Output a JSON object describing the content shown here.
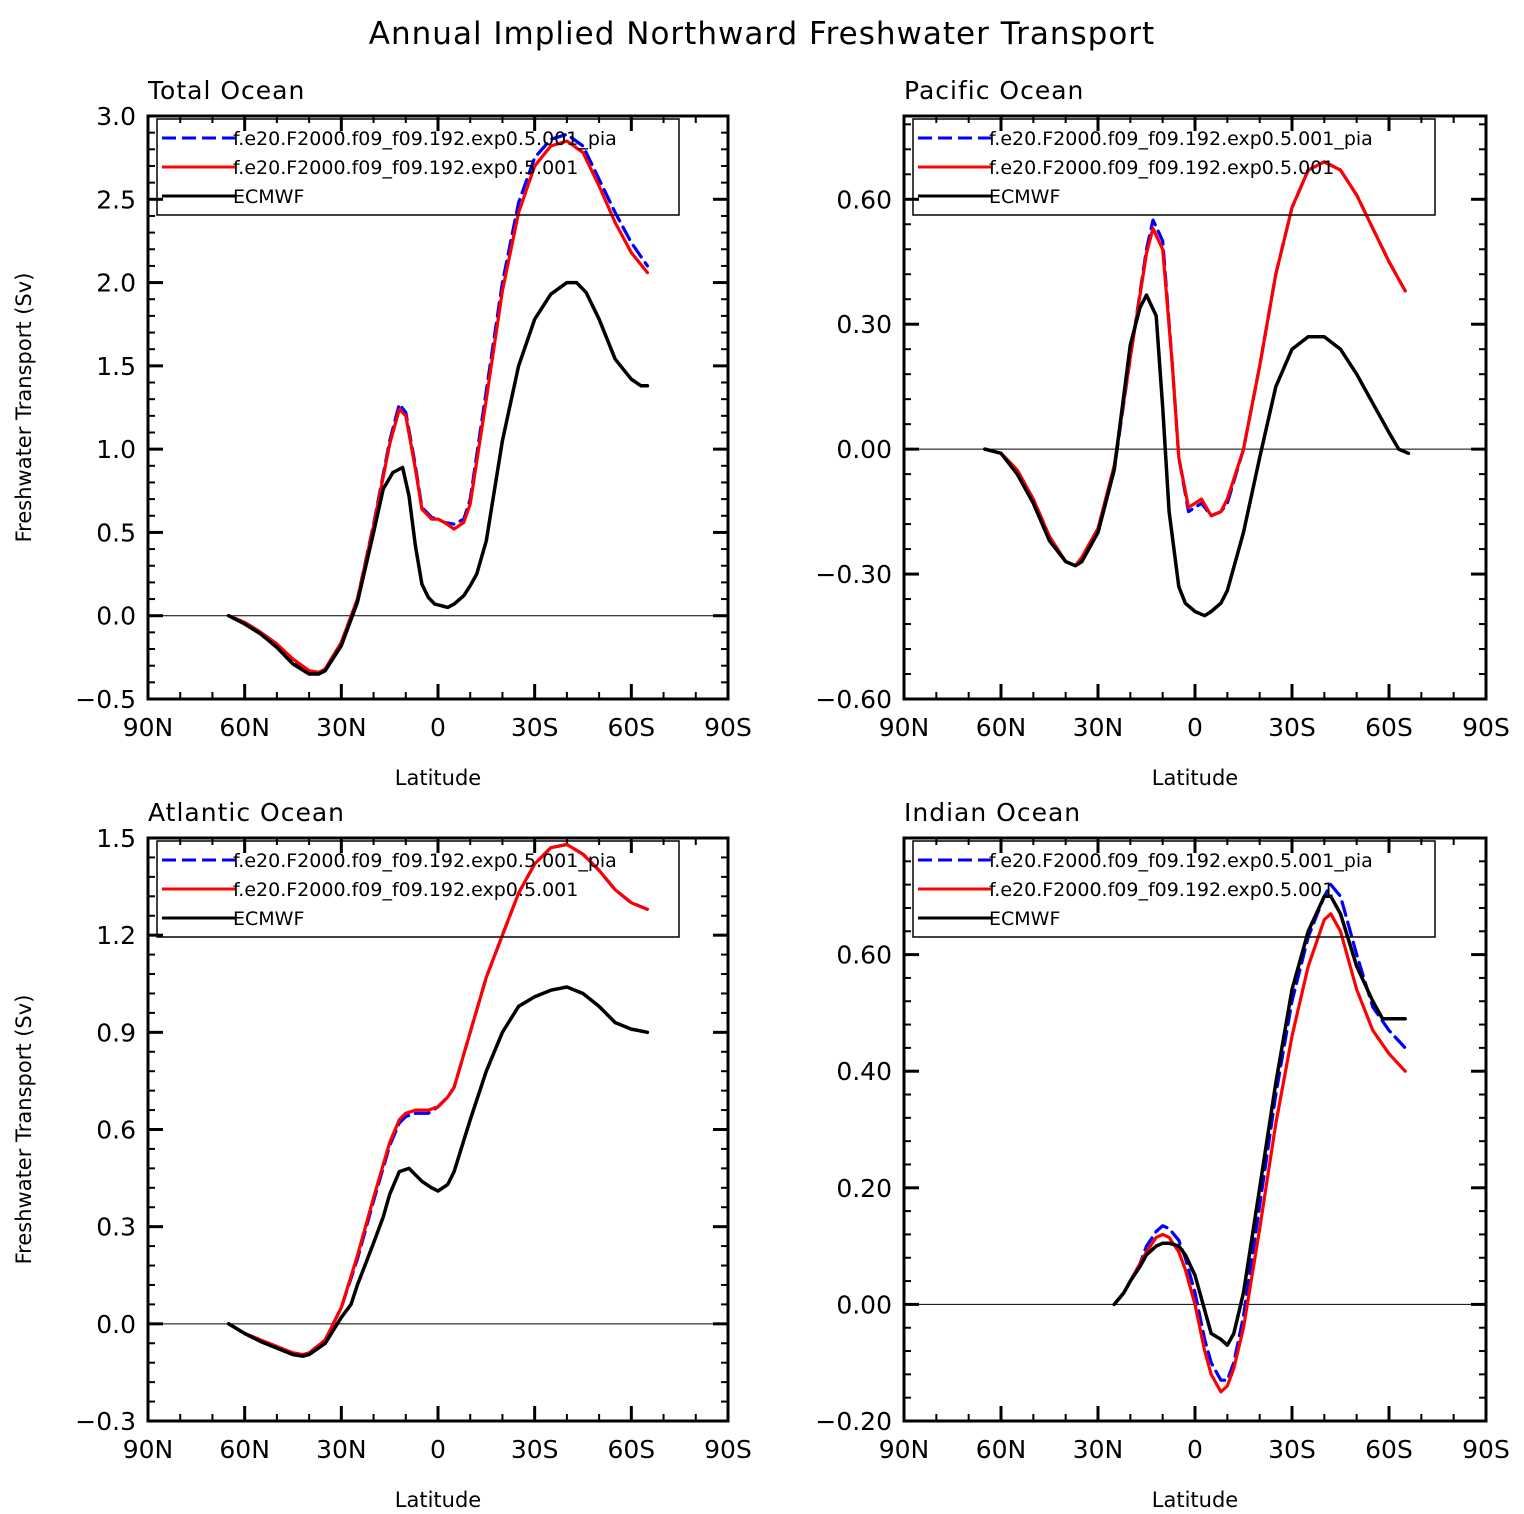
{
  "title": "Annual Implied Northward Freshwater Transport",
  "colors": {
    "pia": "#0000ff",
    "exp": "#ff0000",
    "ecmwf": "#000000"
  },
  "chart_data": [
    {
      "type": "line",
      "title": "Total Ocean",
      "xlabel": "Latitude",
      "ylabel": "Freshwater Transport (Sv)",
      "xlim": [
        -90,
        90
      ],
      "xticks": [
        "90N",
        "60N",
        "30N",
        "0",
        "30S",
        "60S",
        "90S"
      ],
      "ylim": [
        -0.5,
        3.0
      ],
      "yticks": [
        "-0.5",
        "0.0",
        "0.5",
        "1.0",
        "1.5",
        "2.0",
        "2.5",
        "3.0"
      ],
      "legend": [
        "f.e20.F2000.f09_f09.192.exp0.5.001_pia",
        "f.e20.F2000.f09_f09.192.exp0.5.001",
        "ECMWF"
      ],
      "series": [
        {
          "name": "f.e20.F2000.f09_f09.192.exp0.5.001_pia",
          "style": "dashed",
          "x": [
            -65,
            -60,
            -55,
            -50,
            -45,
            -40,
            -37,
            -35,
            -30,
            -25,
            -20,
            -15,
            -12,
            -10,
            -7,
            -5,
            -2,
            0,
            2,
            5,
            8,
            10,
            15,
            20,
            25,
            30,
            35,
            40,
            45,
            50,
            55,
            60,
            65
          ],
          "y": [
            0.0,
            -0.04,
            -0.1,
            -0.17,
            -0.27,
            -0.35,
            -0.35,
            -0.32,
            -0.16,
            0.1,
            0.55,
            1.05,
            1.27,
            1.22,
            0.9,
            0.65,
            0.59,
            0.58,
            0.56,
            0.55,
            0.58,
            0.7,
            1.35,
            2.0,
            2.48,
            2.75,
            2.86,
            2.89,
            2.82,
            2.62,
            2.42,
            2.24,
            2.1
          ]
        },
        {
          "name": "f.e20.F2000.f09_f09.192.exp0.5.001",
          "style": "solid",
          "x": [
            -65,
            -60,
            -55,
            -50,
            -45,
            -40,
            -37,
            -35,
            -30,
            -25,
            -20,
            -15,
            -12,
            -10,
            -7,
            -5,
            -2,
            0,
            2,
            5,
            8,
            10,
            15,
            20,
            25,
            30,
            35,
            40,
            45,
            50,
            55,
            60,
            65
          ],
          "y": [
            0.0,
            -0.04,
            -0.1,
            -0.17,
            -0.26,
            -0.33,
            -0.34,
            -0.32,
            -0.16,
            0.1,
            0.54,
            1.03,
            1.24,
            1.2,
            0.88,
            0.64,
            0.58,
            0.58,
            0.56,
            0.52,
            0.56,
            0.67,
            1.3,
            1.95,
            2.42,
            2.7,
            2.82,
            2.85,
            2.78,
            2.58,
            2.36,
            2.18,
            2.06
          ]
        },
        {
          "name": "ECMWF",
          "style": "solid",
          "x": [
            -65,
            -60,
            -55,
            -50,
            -45,
            -40,
            -37,
            -35,
            -30,
            -25,
            -20,
            -17,
            -14,
            -11,
            -9,
            -7,
            -5,
            -3,
            -1,
            1,
            3,
            5,
            8,
            10,
            12,
            15,
            20,
            25,
            30,
            35,
            40,
            43,
            46,
            50,
            55,
            60,
            63,
            65
          ],
          "y": [
            0.0,
            -0.05,
            -0.11,
            -0.19,
            -0.29,
            -0.35,
            -0.35,
            -0.33,
            -0.18,
            0.08,
            0.5,
            0.76,
            0.86,
            0.89,
            0.72,
            0.42,
            0.19,
            0.11,
            0.07,
            0.06,
            0.05,
            0.07,
            0.12,
            0.18,
            0.25,
            0.45,
            1.05,
            1.5,
            1.78,
            1.93,
            2.0,
            2.0,
            1.94,
            1.78,
            1.54,
            1.42,
            1.38,
            1.38
          ]
        }
      ]
    },
    {
      "type": "line",
      "title": "Pacific Ocean",
      "xlabel": "Latitude",
      "ylabel": "",
      "xlim": [
        -90,
        90
      ],
      "xticks": [
        "90N",
        "60N",
        "30N",
        "0",
        "30S",
        "60S",
        "90S"
      ],
      "ylim": [
        -0.6,
        0.8
      ],
      "yticks": [
        "-0.60",
        "-0.30",
        "0.00",
        "0.30",
        "0.60"
      ],
      "legend": [
        "f.e20.F2000.f09_f09.192.exp0.5.001_pia",
        "f.e20.F2000.f09_f09.192.exp0.5.001",
        "ECMWF"
      ],
      "series": [
        {
          "name": "f.e20.F2000.f09_f09.192.exp0.5.001_pia",
          "style": "dashed",
          "x": [
            -65,
            -60,
            -55,
            -50,
            -45,
            -40,
            -37,
            -35,
            -30,
            -25,
            -20,
            -15,
            -13,
            -10,
            -7,
            -5,
            -2,
            0,
            2,
            5,
            8,
            10,
            15,
            20,
            25,
            30,
            35,
            40,
            45,
            50,
            55,
            60,
            65
          ],
          "y": [
            0.0,
            -0.01,
            -0.05,
            -0.12,
            -0.21,
            -0.27,
            -0.28,
            -0.27,
            -0.2,
            -0.05,
            0.22,
            0.48,
            0.55,
            0.5,
            0.2,
            -0.02,
            -0.15,
            -0.14,
            -0.13,
            -0.16,
            -0.15,
            -0.13,
            0.0,
            0.2,
            0.42,
            0.58,
            0.67,
            0.69,
            0.67,
            0.61,
            0.53,
            0.45,
            0.38
          ]
        },
        {
          "name": "f.e20.F2000.f09_f09.192.exp0.5.001",
          "style": "solid",
          "x": [
            -65,
            -60,
            -55,
            -50,
            -45,
            -40,
            -37,
            -35,
            -30,
            -25,
            -20,
            -15,
            -13,
            -10,
            -7,
            -5,
            -2,
            0,
            2,
            5,
            8,
            10,
            15,
            20,
            25,
            30,
            35,
            40,
            45,
            50,
            55,
            60,
            65
          ],
          "y": [
            0.0,
            -0.01,
            -0.05,
            -0.12,
            -0.21,
            -0.27,
            -0.28,
            -0.26,
            -0.19,
            -0.04,
            0.22,
            0.47,
            0.53,
            0.48,
            0.2,
            -0.02,
            -0.14,
            -0.13,
            -0.12,
            -0.16,
            -0.15,
            -0.12,
            0.0,
            0.2,
            0.42,
            0.58,
            0.67,
            0.69,
            0.67,
            0.61,
            0.53,
            0.45,
            0.38
          ]
        },
        {
          "name": "ECMWF",
          "style": "solid",
          "x": [
            -65,
            -60,
            -55,
            -50,
            -45,
            -40,
            -37,
            -35,
            -30,
            -25,
            -20,
            -17,
            -15,
            -12,
            -10,
            -8,
            -5,
            -3,
            0,
            3,
            5,
            8,
            10,
            15,
            20,
            25,
            30,
            35,
            40,
            45,
            50,
            55,
            60,
            63,
            66
          ],
          "y": [
            0.0,
            -0.01,
            -0.06,
            -0.13,
            -0.22,
            -0.27,
            -0.28,
            -0.27,
            -0.2,
            -0.05,
            0.25,
            0.34,
            0.37,
            0.32,
            0.1,
            -0.15,
            -0.33,
            -0.37,
            -0.39,
            -0.4,
            -0.39,
            -0.37,
            -0.34,
            -0.2,
            -0.02,
            0.15,
            0.24,
            0.27,
            0.27,
            0.24,
            0.18,
            0.11,
            0.04,
            0.0,
            -0.01
          ]
        }
      ]
    },
    {
      "type": "line",
      "title": "Atlantic Ocean",
      "xlabel": "Latitude",
      "ylabel": "Freshwater Transport (Sv)",
      "xlim": [
        -90,
        90
      ],
      "xticks": [
        "90N",
        "60N",
        "30N",
        "0",
        "30S",
        "60S",
        "90S"
      ],
      "ylim": [
        -0.3,
        1.5
      ],
      "yticks": [
        "-0.3",
        "0.0",
        "0.3",
        "0.6",
        "0.9",
        "1.2",
        "1.5"
      ],
      "legend": [
        "f.e20.F2000.f09_f09.192.exp0.5.001_pia",
        "f.e20.F2000.f09_f09.192.exp0.5.001",
        "ECMWF"
      ],
      "series": [
        {
          "name": "f.e20.F2000.f09_f09.192.exp0.5.001_pia",
          "style": "dashed",
          "x": [
            -65,
            -60,
            -55,
            -50,
            -45,
            -42,
            -40,
            -35,
            -30,
            -25,
            -20,
            -15,
            -12,
            -10,
            -7,
            -5,
            -3,
            0,
            3,
            5,
            10,
            15,
            20,
            25,
            30,
            35,
            40,
            45,
            50,
            55,
            60,
            65
          ],
          "y": [
            0.0,
            -0.03,
            -0.05,
            -0.07,
            -0.09,
            -0.095,
            -0.09,
            -0.05,
            0.05,
            0.2,
            0.38,
            0.55,
            0.62,
            0.64,
            0.65,
            0.65,
            0.65,
            0.67,
            0.7,
            0.73,
            0.9,
            1.07,
            1.2,
            1.33,
            1.42,
            1.47,
            1.48,
            1.45,
            1.4,
            1.34,
            1.3,
            1.28
          ]
        },
        {
          "name": "f.e20.F2000.f09_f09.192.exp0.5.001",
          "style": "solid",
          "x": [
            -65,
            -60,
            -55,
            -50,
            -45,
            -42,
            -40,
            -35,
            -30,
            -25,
            -20,
            -15,
            -12,
            -10,
            -7,
            -5,
            -3,
            0,
            3,
            5,
            10,
            15,
            20,
            25,
            30,
            35,
            40,
            45,
            50,
            55,
            60,
            65
          ],
          "y": [
            0.0,
            -0.03,
            -0.05,
            -0.07,
            -0.09,
            -0.095,
            -0.09,
            -0.05,
            0.05,
            0.21,
            0.39,
            0.56,
            0.63,
            0.65,
            0.66,
            0.66,
            0.66,
            0.67,
            0.7,
            0.73,
            0.9,
            1.07,
            1.2,
            1.33,
            1.42,
            1.47,
            1.48,
            1.45,
            1.4,
            1.34,
            1.3,
            1.28
          ]
        },
        {
          "name": "ECMWF",
          "style": "solid",
          "x": [
            -65,
            -60,
            -55,
            -50,
            -45,
            -42,
            -40,
            -35,
            -30,
            -27,
            -25,
            -20,
            -17,
            -15,
            -12,
            -9,
            -7,
            -5,
            -2,
            0,
            3,
            5,
            10,
            15,
            20,
            25,
            30,
            35,
            40,
            45,
            50,
            55,
            60,
            65
          ],
          "y": [
            0.0,
            -0.03,
            -0.055,
            -0.075,
            -0.095,
            -0.1,
            -0.095,
            -0.06,
            0.02,
            0.06,
            0.12,
            0.25,
            0.33,
            0.4,
            0.47,
            0.48,
            0.46,
            0.44,
            0.42,
            0.41,
            0.43,
            0.47,
            0.63,
            0.78,
            0.9,
            0.98,
            1.01,
            1.03,
            1.04,
            1.02,
            0.98,
            0.93,
            0.91,
            0.9
          ]
        }
      ]
    },
    {
      "type": "line",
      "title": "Indian Ocean",
      "xlabel": "Latitude",
      "ylabel": "",
      "xlim": [
        -90,
        90
      ],
      "xticks": [
        "90N",
        "60N",
        "30N",
        "0",
        "30S",
        "60S",
        "90S"
      ],
      "ylim": [
        -0.2,
        0.8
      ],
      "yticks": [
        "-0.20",
        "0.00",
        "0.20",
        "0.40",
        "0.60"
      ],
      "legend": [
        "f.e20.F2000.f09_f09.192.exp0.5.001_pia",
        "f.e20.F2000.f09_f09.192.exp0.5.001",
        "ECMWF"
      ],
      "series": [
        {
          "name": "f.e20.F2000.f09_f09.192.exp0.5.001_pia",
          "style": "dashed",
          "x": [
            -25,
            -22,
            -20,
            -17,
            -15,
            -12,
            -10,
            -8,
            -5,
            -3,
            0,
            3,
            5,
            8,
            10,
            12,
            15,
            20,
            25,
            30,
            35,
            40,
            42,
            45,
            50,
            55,
            60,
            65
          ],
          "y": [
            0.0,
            0.02,
            0.04,
            0.07,
            0.1,
            0.125,
            0.135,
            0.13,
            0.11,
            0.08,
            0.02,
            -0.06,
            -0.1,
            -0.13,
            -0.13,
            -0.1,
            -0.02,
            0.17,
            0.36,
            0.52,
            0.63,
            0.7,
            0.72,
            0.7,
            0.6,
            0.51,
            0.47,
            0.44
          ]
        },
        {
          "name": "f.e20.F2000.f09_f09.192.exp0.5.001",
          "style": "solid",
          "x": [
            -25,
            -22,
            -20,
            -17,
            -15,
            -12,
            -10,
            -8,
            -5,
            -3,
            0,
            3,
            5,
            8,
            10,
            12,
            15,
            20,
            25,
            30,
            35,
            40,
            42,
            45,
            50,
            55,
            60,
            65
          ],
          "y": [
            0.0,
            0.02,
            0.04,
            0.07,
            0.09,
            0.115,
            0.12,
            0.115,
            0.09,
            0.06,
            0.0,
            -0.08,
            -0.12,
            -0.15,
            -0.14,
            -0.11,
            -0.04,
            0.13,
            0.31,
            0.46,
            0.58,
            0.66,
            0.67,
            0.64,
            0.54,
            0.47,
            0.43,
            0.4
          ]
        },
        {
          "name": "ECMWF",
          "style": "solid",
          "x": [
            -25,
            -22,
            -20,
            -17,
            -15,
            -12,
            -10,
            -8,
            -5,
            -3,
            0,
            3,
            5,
            8,
            10,
            12,
            15,
            20,
            25,
            30,
            35,
            40,
            42,
            45,
            50,
            55,
            58,
            60,
            65
          ],
          "y": [
            0.0,
            0.02,
            0.04,
            0.065,
            0.085,
            0.1,
            0.105,
            0.105,
            0.1,
            0.085,
            0.05,
            -0.01,
            -0.05,
            -0.06,
            -0.07,
            -0.05,
            0.02,
            0.2,
            0.38,
            0.54,
            0.64,
            0.7,
            0.7,
            0.67,
            0.58,
            0.52,
            0.49,
            0.49,
            0.49
          ]
        }
      ]
    }
  ]
}
